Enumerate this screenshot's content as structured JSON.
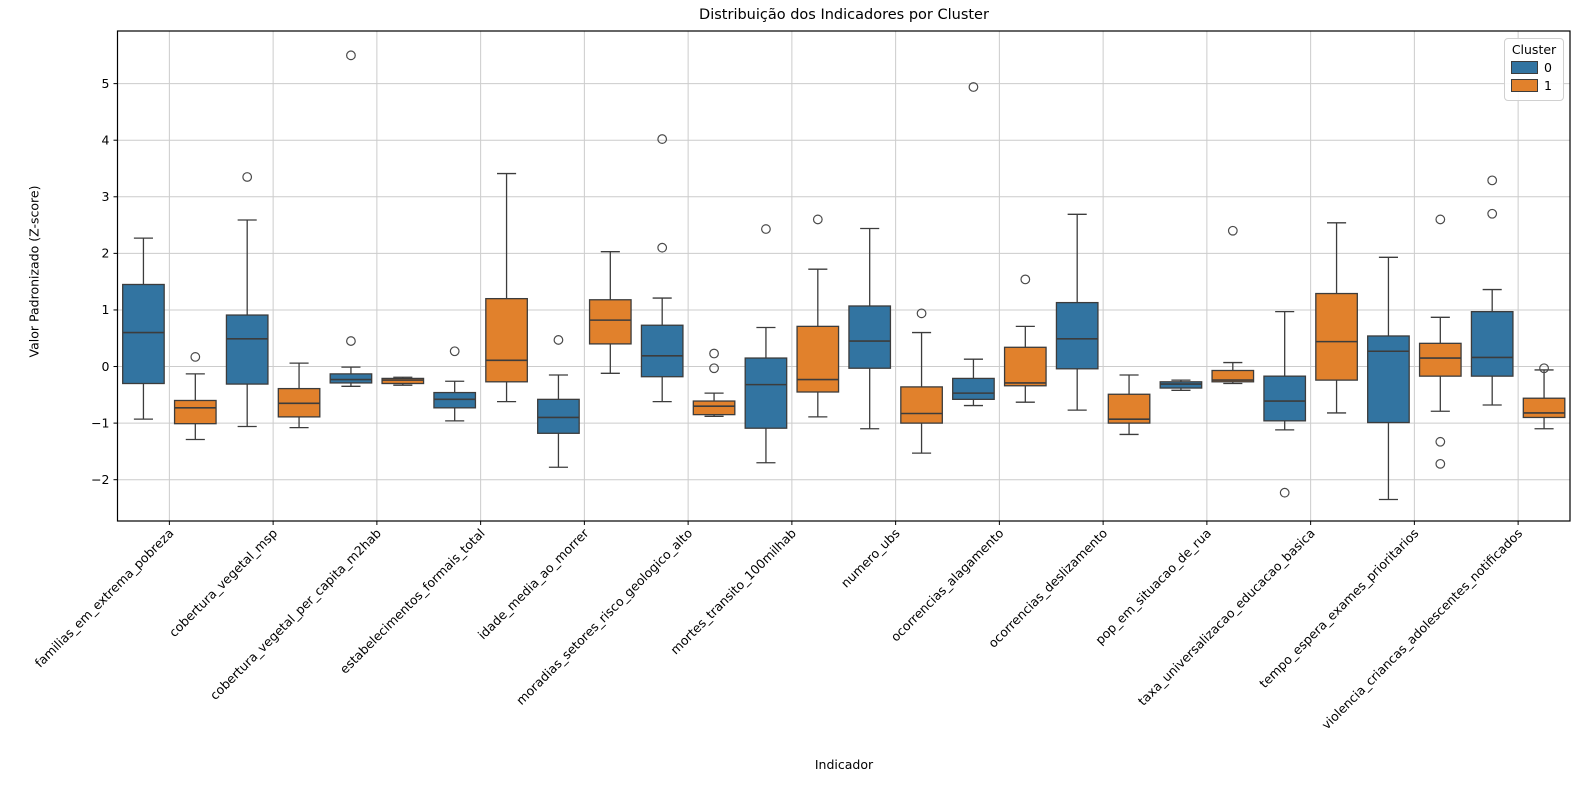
{
  "chart": {
    "title": "Distribuição dos Indicadores por Cluster",
    "xlabel": "Indicador",
    "ylabel": "Valor Padronizado (Z-score)",
    "legend_title": "Cluster"
  },
  "chart_data": {
    "type": "boxplot",
    "title": "Distribuição dos Indicadores por Cluster",
    "xlabel": "Indicador",
    "ylabel": "Valor Padronizado (Z-score)",
    "grid": true,
    "legend_position": "upper right",
    "legend_title": "Cluster",
    "ylim": [
      -2.73,
      5.93
    ],
    "yticks": [
      -2,
      -1,
      0,
      1,
      2,
      3,
      4,
      5
    ],
    "categories": [
      "familias_em_extrema_pobreza",
      "cobertura_vegetal_msp",
      "cobertura_vegetal_per_capita_m2hab",
      "estabelecimentos_formais_total",
      "idade_media_ao_morrer",
      "moradias_setores_risco_geologico_alto",
      "mortes_transito_100milhab",
      "numero_ubs",
      "ocorrencias_alagamento",
      "ocorrencias_deslizamento",
      "pop_em_situacao_de_rua",
      "taxa_universalizacao_educacao_basica",
      "tempo_espera_exames_prioritarios",
      "violencia_criancas_adolescentes_notificados"
    ],
    "series": [
      {
        "name": "0",
        "color": "#3274a1",
        "boxes": [
          {
            "lo": -0.93,
            "q1": -0.3,
            "med": 0.6,
            "q3": 1.45,
            "hi": 2.27,
            "outliers": []
          },
          {
            "lo": -1.06,
            "q1": -0.31,
            "med": 0.49,
            "q3": 0.91,
            "hi": 2.59,
            "outliers": [
              3.35
            ]
          },
          {
            "lo": -0.35,
            "q1": -0.29,
            "med": -0.23,
            "q3": -0.13,
            "hi": -0.01,
            "outliers": [
              5.5,
              0.45
            ]
          },
          {
            "lo": -0.96,
            "q1": -0.73,
            "med": -0.58,
            "q3": -0.46,
            "hi": -0.26,
            "outliers": [
              0.27
            ]
          },
          {
            "lo": -1.78,
            "q1": -1.18,
            "med": -0.9,
            "q3": -0.58,
            "hi": -0.15,
            "outliers": [
              0.47
            ]
          },
          {
            "lo": -0.62,
            "q1": -0.18,
            "med": 0.19,
            "q3": 0.73,
            "hi": 1.21,
            "outliers": [
              4.02,
              2.1
            ]
          },
          {
            "lo": -1.7,
            "q1": -1.09,
            "med": -0.32,
            "q3": 0.15,
            "hi": 0.69,
            "outliers": [
              2.43
            ]
          },
          {
            "lo": -1.1,
            "q1": -0.03,
            "med": 0.45,
            "q3": 1.07,
            "hi": 2.44,
            "outliers": []
          },
          {
            "lo": -0.69,
            "q1": -0.58,
            "med": -0.47,
            "q3": -0.21,
            "hi": 0.13,
            "outliers": [
              4.94
            ]
          },
          {
            "lo": -0.77,
            "q1": -0.04,
            "med": 0.49,
            "q3": 1.13,
            "hi": 2.69,
            "outliers": []
          },
          {
            "lo": -0.42,
            "q1": -0.38,
            "med": -0.31,
            "q3": -0.27,
            "hi": -0.24,
            "outliers": []
          },
          {
            "lo": -1.12,
            "q1": -0.96,
            "med": -0.61,
            "q3": -0.17,
            "hi": 0.97,
            "outliers": [
              -2.23
            ]
          },
          {
            "lo": -2.35,
            "q1": -0.99,
            "med": 0.27,
            "q3": 0.54,
            "hi": 1.93,
            "outliers": []
          },
          {
            "lo": -0.68,
            "q1": -0.17,
            "med": 0.16,
            "q3": 0.97,
            "hi": 1.36,
            "outliers": [
              3.29,
              2.7
            ]
          }
        ]
      },
      {
        "name": "1",
        "color": "#e1812c",
        "boxes": [
          {
            "lo": -1.29,
            "q1": -1.01,
            "med": -0.73,
            "q3": -0.6,
            "hi": -0.13,
            "outliers": [
              0.17
            ]
          },
          {
            "lo": -1.08,
            "q1": -0.89,
            "med": -0.65,
            "q3": -0.39,
            "hi": 0.06,
            "outliers": []
          },
          {
            "lo": -0.33,
            "q1": -0.3,
            "med": -0.24,
            "q3": -0.21,
            "hi": -0.19,
            "outliers": []
          },
          {
            "lo": -0.62,
            "q1": -0.27,
            "med": 0.11,
            "q3": 1.2,
            "hi": 3.41,
            "outliers": []
          },
          {
            "lo": -0.12,
            "q1": 0.4,
            "med": 0.82,
            "q3": 1.18,
            "hi": 2.03,
            "outliers": []
          },
          {
            "lo": -0.88,
            "q1": -0.85,
            "med": -0.7,
            "q3": -0.61,
            "hi": -0.47,
            "outliers": [
              0.23,
              -0.03
            ]
          },
          {
            "lo": -0.89,
            "q1": -0.45,
            "med": -0.23,
            "q3": 0.71,
            "hi": 1.72,
            "outliers": [
              2.6
            ]
          },
          {
            "lo": -1.53,
            "q1": -1.0,
            "med": -0.83,
            "q3": -0.36,
            "hi": 0.6,
            "outliers": [
              0.94
            ]
          },
          {
            "lo": -0.63,
            "q1": -0.34,
            "med": -0.29,
            "q3": 0.34,
            "hi": 0.71,
            "outliers": [
              1.54
            ]
          },
          {
            "lo": -1.2,
            "q1": -1.0,
            "med": -0.93,
            "q3": -0.49,
            "hi": -0.15,
            "outliers": []
          },
          {
            "lo": -0.3,
            "q1": -0.27,
            "med": -0.24,
            "q3": -0.07,
            "hi": 0.07,
            "outliers": [
              2.4
            ]
          },
          {
            "lo": -0.82,
            "q1": -0.24,
            "med": 0.44,
            "q3": 1.29,
            "hi": 2.54,
            "outliers": []
          },
          {
            "lo": -0.79,
            "q1": -0.17,
            "med": 0.15,
            "q3": 0.41,
            "hi": 0.87,
            "outliers": [
              2.6,
              -1.33,
              -1.72
            ]
          },
          {
            "lo": -1.1,
            "q1": -0.9,
            "med": -0.82,
            "q3": -0.56,
            "hi": -0.06,
            "outliers": [
              -0.03
            ]
          }
        ]
      }
    ],
    "style": {
      "grid_color": "#cccccc",
      "spine_color": "#000000",
      "box_edge_color": "#3c3c3c",
      "cluster0_color": "#3274a1",
      "cluster1_color": "#e1812c"
    }
  }
}
